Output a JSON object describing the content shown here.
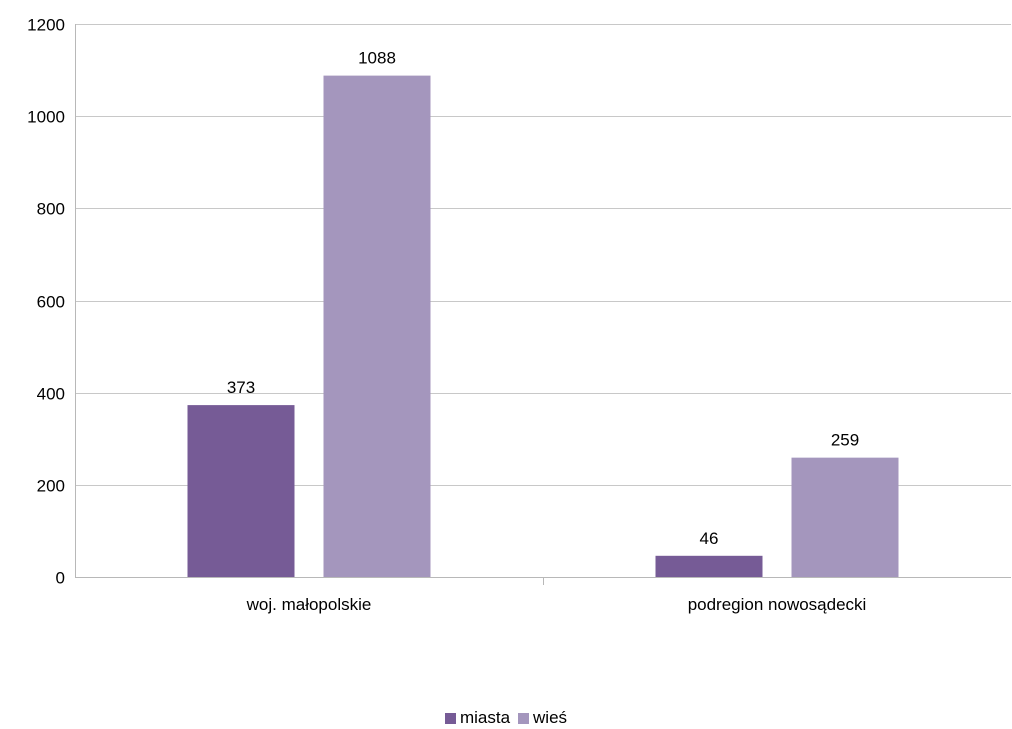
{
  "chart_data": {
    "type": "bar",
    "title": "",
    "xlabel": "",
    "ylabel": "",
    "categories": [
      "woj. małopolskie",
      "podregion nowosądecki"
    ],
    "series": [
      {
        "name": "miasta",
        "values": [
          373,
          46
        ],
        "color": "#765b96"
      },
      {
        "name": "wieś",
        "values": [
          1088,
          259
        ],
        "color": "#a496bd"
      }
    ],
    "ylim": [
      0,
      1200
    ],
    "yticks": [
      0,
      200,
      400,
      600,
      800,
      1000,
      1200
    ],
    "grid": true,
    "legend_position": "bottom",
    "data_labels": true
  }
}
